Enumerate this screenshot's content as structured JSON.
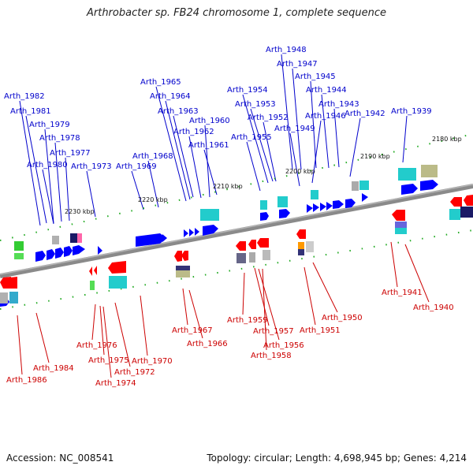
{
  "title": "Arthrobacter sp. FB24 chromosome 1, complete sequence",
  "footer": {
    "accession": "Accession: NC_008541",
    "summary": "Topology: circular; Length: 4,698,945 bp; Genes: 4,214"
  },
  "colors": {
    "forward_label": "#0000cc",
    "reverse_label": "#cc0000",
    "backbone": "#8a8a8a",
    "forward_gene": "#0000ff",
    "reverse_gene": "#ff0000",
    "tick": "#22aa22"
  },
  "ticks": [
    "2180 kbp",
    "2190 kbp",
    "2200 kbp",
    "2210 kbp",
    "2220 kbp",
    "2230 kbp"
  ],
  "forward_labels": [
    "Arth_1948",
    "Arth_1947",
    "Arth_1945",
    "Arth_1944",
    "Arth_1943",
    "Arth_1946",
    "Arth_1942",
    "Arth_1939",
    "Arth_1949",
    "Arth_1954",
    "Arth_1953",
    "Arth_1952",
    "Arth_1955",
    "Arth_1965",
    "Arth_1964",
    "Arth_1963",
    "Arth_1960",
    "Arth_1962",
    "Arth_1961",
    "Arth_1968",
    "Arth_1969",
    "Arth_1982",
    "Arth_1981",
    "Arth_1979",
    "Arth_1978",
    "Arth_1977",
    "Arth_1980",
    "Arth_1973"
  ],
  "reverse_labels": [
    "Arth_1941",
    "Arth_1940",
    "Arth_1950",
    "Arth_1951",
    "Arth_1959",
    "Arth_1957",
    "Arth_1956",
    "Arth_1958",
    "Arth_1967",
    "Arth_1966",
    "Arth_1970",
    "Arth_1972",
    "Arth_1976",
    "Arth_1975",
    "Arth_1974",
    "Arth_1984",
    "Arth_1986"
  ]
}
